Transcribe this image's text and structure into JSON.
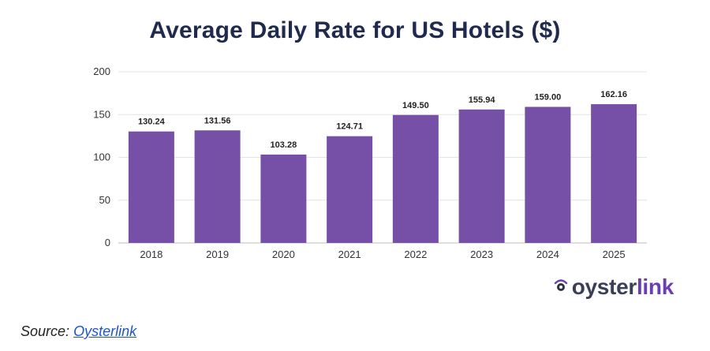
{
  "chart_data": {
    "type": "bar",
    "title": "Average Daily Rate for US Hotels ($)",
    "categories": [
      "2018",
      "2019",
      "2020",
      "2021",
      "2022",
      "2023",
      "2024",
      "2025"
    ],
    "values": [
      130.24,
      131.56,
      103.28,
      124.71,
      149.5,
      155.94,
      159.0,
      162.16
    ],
    "value_labels": [
      "130.24",
      "131.56",
      "103.28",
      "124.71",
      "149.50",
      "155.94",
      "159.00",
      "162.16"
    ],
    "xlabel": "",
    "ylabel": "",
    "ylim": [
      0,
      200
    ],
    "yticks": [
      "0",
      "50",
      "100",
      "150",
      "200"
    ],
    "bar_color": "#7650a6",
    "grid": true,
    "legend": "none"
  },
  "brand": {
    "prefix": "oyster",
    "suffix": "link"
  },
  "source": {
    "label": "Source:",
    "link_text": "Oysterlink"
  }
}
